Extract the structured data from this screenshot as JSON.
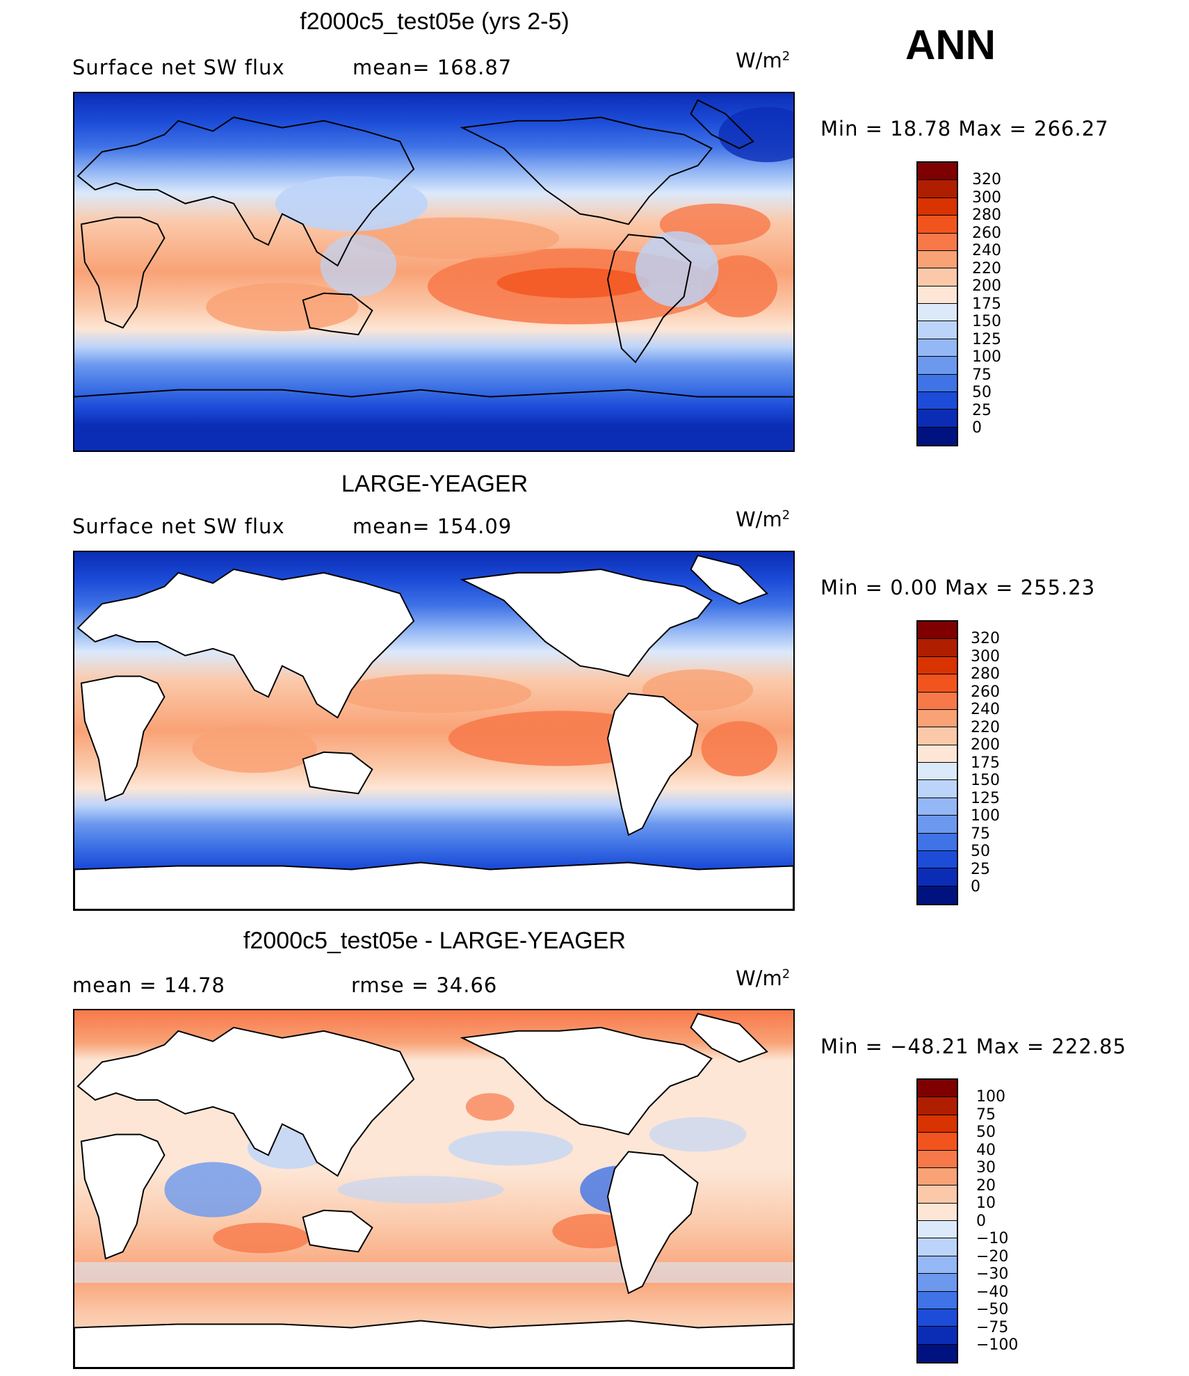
{
  "season": "ANN",
  "units": {
    "base": "W/m",
    "exp": "2"
  },
  "panels": [
    {
      "title": "f2000c5_test05e (yrs 2-5)",
      "subtitle_left": "Surface net SW flux",
      "subtitle_mid": "mean= 168.87",
      "minmax": "Min =   18.78 Max = 266.27"
    },
    {
      "title": "LARGE-YEAGER",
      "subtitle_left": "Surface net SW flux",
      "subtitle_mid": "mean= 154.09",
      "minmax": "Min =    0.00 Max = 255.23"
    },
    {
      "title": "f2000c5_test05e - LARGE-YEAGER",
      "subtitle_left": "mean =   14.78",
      "subtitle_mid": "rmse =   34.66",
      "minmax": "Min = −48.21 Max = 222.85"
    }
  ],
  "colorbar_abs": {
    "labels": [
      "320",
      "300",
      "280",
      "260",
      "240",
      "220",
      "200",
      "175",
      "150",
      "125",
      "100",
      "75",
      "50",
      "25",
      "0"
    ],
    "colors": [
      "#7f0000",
      "#b01e00",
      "#d83300",
      "#f2541e",
      "#f7794a",
      "#f9a276",
      "#fbc9aa",
      "#fde6d5",
      "#dbe9fb",
      "#bcd4fa",
      "#94b7f5",
      "#6c98ee",
      "#3f73e6",
      "#1c4cd8",
      "#0b2db6",
      "#00127f"
    ]
  },
  "colorbar_diff": {
    "labels": [
      "100",
      "75",
      "50",
      "40",
      "30",
      "20",
      "10",
      "0",
      "−10",
      "−20",
      "−30",
      "−40",
      "−50",
      "−75",
      "−100"
    ],
    "colors": [
      "#7f0000",
      "#b01e00",
      "#d83300",
      "#f2541e",
      "#f7794a",
      "#f9a276",
      "#fbc9aa",
      "#fde6d5",
      "#dbe9fb",
      "#bcd4fa",
      "#94b7f5",
      "#6c98ee",
      "#3f73e6",
      "#1c4cd8",
      "#0b2db6",
      "#00127f"
    ]
  }
}
